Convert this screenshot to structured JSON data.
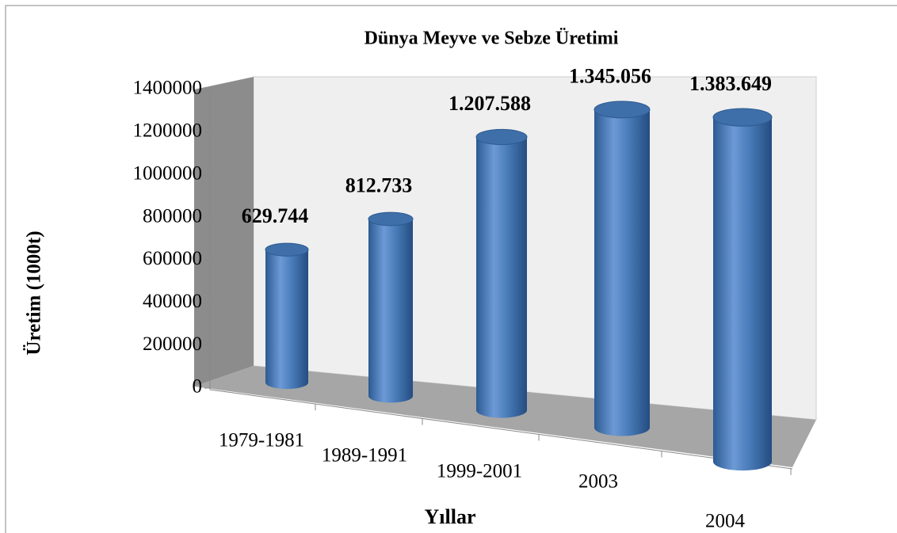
{
  "chart_data": {
    "type": "bar3d",
    "title": "Dünya Meyve ve Sebze Üretimi",
    "x_label": "Yıllar",
    "y_label": "Üretim (1000t)",
    "categories": [
      "1979-1981",
      "1989-1991",
      "1999-2001",
      "2003",
      "2004"
    ],
    "values": [
      629744,
      812733,
      1207588,
      1345056,
      1383649
    ],
    "value_labels": [
      "629.744",
      "812.733",
      "1.207.588",
      "1.345.056",
      "1.383.649"
    ],
    "color": "#4a7ebb",
    "ylim": [
      0,
      1400000
    ],
    "yticks": [
      0,
      200000,
      400000,
      600000,
      800000,
      1000000,
      1200000,
      1400000
    ],
    "grid": false
  }
}
